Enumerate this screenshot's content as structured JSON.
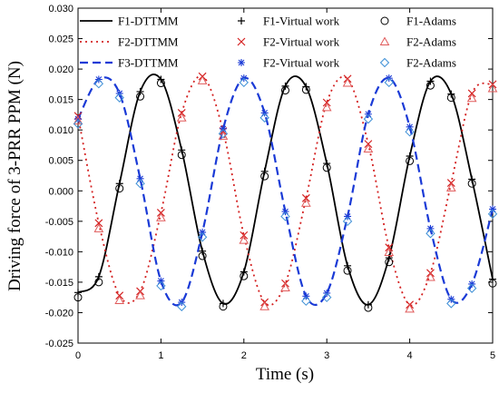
{
  "chart_data": {
    "type": "line",
    "title": "",
    "xlabel": "Time (s)",
    "ylabel": "Driving force of 3-PRR PPM (N)",
    "xlim": [
      0,
      5
    ],
    "ylim": [
      -0.025,
      0.03
    ],
    "xticks": [
      "0",
      "1",
      "2",
      "3",
      "4",
      "5"
    ],
    "yticks": [
      "-0.025",
      "-0.020",
      "-0.015",
      "-0.010",
      "-0.005",
      "0.000",
      "0.005",
      "0.010",
      "0.015",
      "0.020",
      "0.025",
      "0.030"
    ],
    "grid": false,
    "legend_position": "top",
    "series": [
      {
        "name": "F1-DTTMM",
        "style": "solid-line",
        "color": "#000000",
        "x": [
          0,
          0.25,
          0.5,
          0.75,
          1.0,
          1.25,
          1.5,
          1.75,
          2.0,
          2.25,
          2.5,
          2.75,
          3.0,
          3.25,
          3.5,
          3.75,
          4.0,
          4.25,
          4.5,
          4.75,
          5.0
        ],
        "values": [
          -0.0167,
          -0.0141,
          0.0012,
          0.0163,
          0.0183,
          0.0067,
          -0.0099,
          -0.0185,
          -0.0133,
          0.0032,
          0.0172,
          0.0171,
          0.0045,
          -0.0123,
          -0.0187,
          -0.011,
          0.0057,
          0.018,
          0.0159,
          0.0019,
          -0.0145
        ]
      },
      {
        "name": "F2-DTTMM",
        "style": "dotted-line",
        "color": "#d42020",
        "x": [
          0,
          0.25,
          0.5,
          0.75,
          1.0,
          1.25,
          1.5,
          1.75,
          2.0,
          2.25,
          2.5,
          2.75,
          3.0,
          3.25,
          3.5,
          3.75,
          4.0,
          4.25,
          4.5,
          4.75,
          5.0
        ],
        "values": [
          0.0123,
          -0.0053,
          -0.0172,
          -0.0165,
          -0.0036,
          0.0128,
          0.0188,
          0.0098,
          -0.0073,
          -0.0183,
          -0.0152,
          -0.0012,
          0.0145,
          0.0184,
          0.0077,
          -0.0093,
          -0.0187,
          -0.0135,
          0.0013,
          0.016,
          0.0175
        ]
      },
      {
        "name": "F3-DTTMM",
        "style": "dashed-line",
        "color": "#1a3ad6",
        "x": [
          0,
          0.25,
          0.5,
          0.75,
          1.0,
          1.25,
          1.5,
          1.75,
          2.0,
          2.25,
          2.5,
          2.75,
          3.0,
          3.25,
          3.5,
          3.75,
          4.0,
          4.25,
          4.5,
          4.75,
          5.0
        ],
        "values": [
          0.0118,
          0.0183,
          0.016,
          0.002,
          -0.0148,
          -0.0183,
          -0.0068,
          0.0102,
          0.0185,
          0.0128,
          -0.0034,
          -0.0173,
          -0.0168,
          -0.0042,
          0.0126,
          0.0185,
          0.0105,
          -0.0062,
          -0.0178,
          -0.0153,
          -0.003
        ]
      },
      {
        "name": "F1-Virtual work",
        "style": "plus-marker",
        "color": "#000000",
        "x": [
          0,
          0.25,
          0.5,
          0.75,
          1.0,
          1.25,
          1.5,
          1.75,
          2.0,
          2.25,
          2.5,
          2.75,
          3.0,
          3.25,
          3.5,
          3.75,
          4.0,
          4.25,
          4.5,
          4.75,
          5.0
        ],
        "values": [
          -0.0167,
          -0.0141,
          0.0012,
          0.0163,
          0.0183,
          0.0067,
          -0.0099,
          -0.0185,
          -0.0133,
          0.0032,
          0.0172,
          0.0171,
          0.0045,
          -0.0123,
          -0.0187,
          -0.011,
          0.0057,
          0.018,
          0.0159,
          0.0019,
          -0.0145
        ]
      },
      {
        "name": "F2-Virtual work",
        "style": "x-marker",
        "color": "#d42020",
        "x": [
          0,
          0.25,
          0.5,
          0.75,
          1.0,
          1.25,
          1.5,
          1.75,
          2.0,
          2.25,
          2.5,
          2.75,
          3.0,
          3.25,
          3.5,
          3.75,
          4.0,
          4.25,
          4.5,
          4.75,
          5.0
        ],
        "values": [
          0.0123,
          -0.0053,
          -0.0172,
          -0.0165,
          -0.0036,
          0.0128,
          0.0188,
          0.0098,
          -0.0073,
          -0.0183,
          -0.0152,
          -0.0012,
          0.0145,
          0.0184,
          0.0077,
          -0.0093,
          -0.0187,
          -0.0135,
          0.0013,
          0.016,
          0.0175
        ]
      },
      {
        "name": "F2-Virtual work",
        "style": "star-marker",
        "color": "#1a3ad6",
        "x": [
          0,
          0.25,
          0.5,
          0.75,
          1.0,
          1.25,
          1.5,
          1.75,
          2.0,
          2.25,
          2.5,
          2.75,
          3.0,
          3.25,
          3.5,
          3.75,
          4.0,
          4.25,
          4.5,
          4.75,
          5.0
        ],
        "values": [
          0.0118,
          0.0183,
          0.016,
          0.002,
          -0.0148,
          -0.0183,
          -0.0068,
          0.0102,
          0.0185,
          0.0128,
          -0.0034,
          -0.0173,
          -0.0168,
          -0.0042,
          0.0126,
          0.0185,
          0.0105,
          -0.0062,
          -0.0178,
          -0.0153,
          -0.003
        ]
      },
      {
        "name": "F1-Adams",
        "style": "circle-marker",
        "color": "#000000",
        "x": [
          0,
          0.25,
          0.5,
          0.75,
          1.0,
          1.25,
          1.5,
          1.75,
          2.0,
          2.25,
          2.5,
          2.75,
          3.0,
          3.25,
          3.5,
          3.75,
          4.0,
          4.25,
          4.5,
          4.75,
          5.0
        ],
        "values": [
          -0.0175,
          -0.015,
          0.0004,
          0.0155,
          0.0177,
          0.0059,
          -0.0107,
          -0.019,
          -0.014,
          0.0024,
          0.0165,
          0.0166,
          0.0038,
          -0.0131,
          -0.0192,
          -0.0117,
          0.0049,
          0.0173,
          0.0153,
          0.0012,
          -0.0152
        ]
      },
      {
        "name": "F2-Adams",
        "style": "triangle-marker",
        "color": "#e05a5a",
        "x": [
          0,
          0.25,
          0.5,
          0.75,
          1.0,
          1.25,
          1.5,
          1.75,
          2.0,
          2.25,
          2.5,
          2.75,
          3.0,
          3.25,
          3.5,
          3.75,
          4.0,
          4.25,
          4.5,
          4.75,
          5.0
        ],
        "values": [
          0.0115,
          -0.0062,
          -0.018,
          -0.0172,
          -0.0044,
          0.012,
          0.0181,
          0.009,
          -0.0081,
          -0.019,
          -0.0159,
          -0.002,
          0.0137,
          0.0177,
          0.0069,
          -0.0101,
          -0.0194,
          -0.0142,
          0.0005,
          0.0152,
          0.0168
        ]
      },
      {
        "name": "F2-Adams",
        "style": "diamond-marker",
        "color": "#3d8fd6",
        "x": [
          0,
          0.25,
          0.5,
          0.75,
          1.0,
          1.25,
          1.5,
          1.75,
          2.0,
          2.25,
          2.5,
          2.75,
          3.0,
          3.25,
          3.5,
          3.75,
          4.0,
          4.25,
          4.5,
          4.75,
          5.0
        ],
        "values": [
          0.011,
          0.0176,
          0.0153,
          0.0012,
          -0.0156,
          -0.019,
          -0.0076,
          0.0094,
          0.0178,
          0.012,
          -0.0042,
          -0.0181,
          -0.0175,
          -0.005,
          0.0118,
          0.0178,
          0.0097,
          -0.007,
          -0.0185,
          -0.016,
          -0.0038
        ]
      }
    ]
  }
}
